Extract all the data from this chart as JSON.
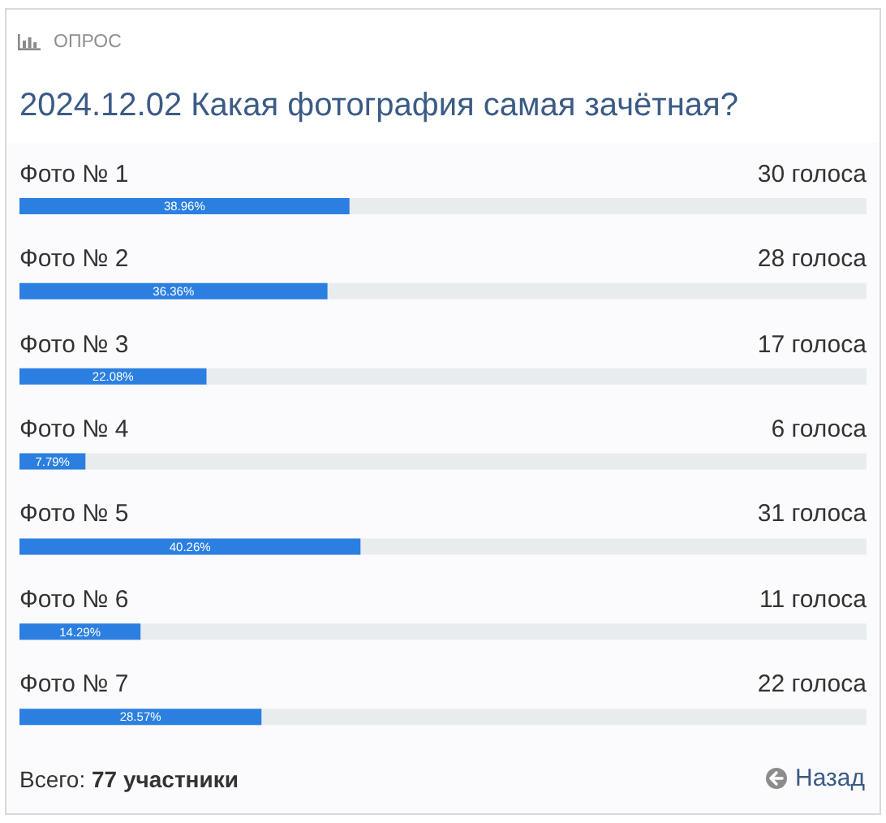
{
  "chart_data": {
    "type": "bar",
    "orientation": "horizontal",
    "title": "2024.12.02 Какая фотография самая зачётная?",
    "categories": [
      "Фото № 1",
      "Фото № 2",
      "Фото № 3",
      "Фото № 4",
      "Фото № 5",
      "Фото № 6",
      "Фото № 7"
    ],
    "values": [
      38.96,
      36.36,
      22.08,
      7.79,
      40.26,
      14.29,
      28.57
    ],
    "value_labels": [
      "38.96%",
      "36.36%",
      "22.08%",
      "7.79%",
      "40.26%",
      "14.29%",
      "28.57%"
    ],
    "color": "#2b7fe0",
    "xlim": [
      0,
      100
    ],
    "tick_labels": "y",
    "annotations": [
      "ОПРОС",
      "30 голоса",
      "28 голоса",
      "17 голоса",
      "6 голоса",
      "31 голоса",
      "11 голоса",
      "22 голоса",
      "Всего: 77 участники",
      "Назад"
    ]
  }
}
